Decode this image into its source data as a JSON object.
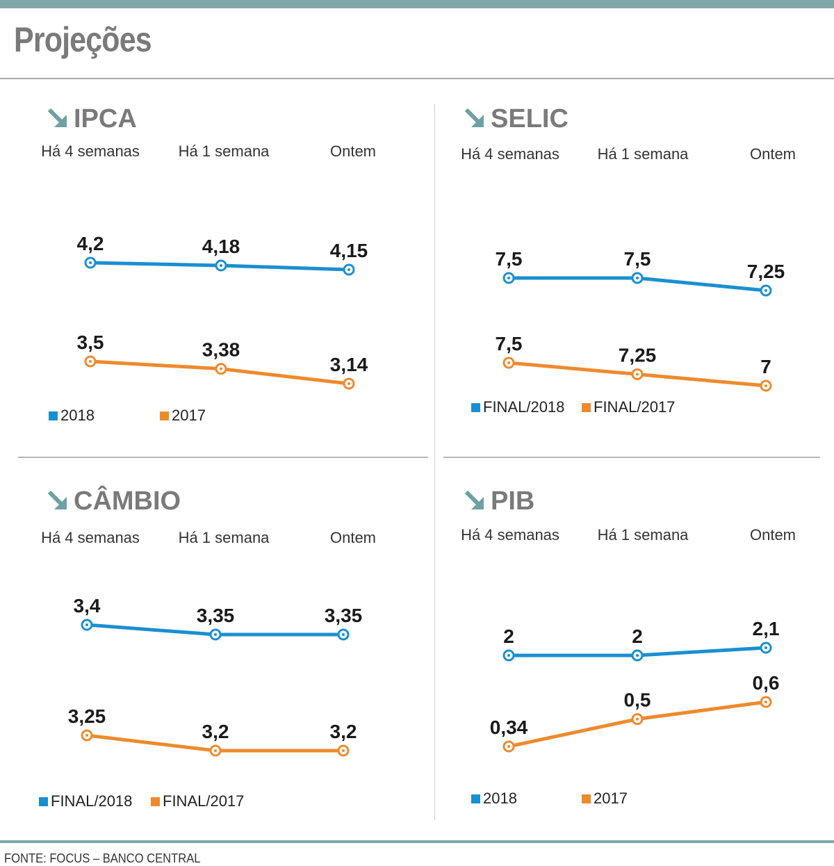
{
  "title": "Projeções",
  "source": "FONTE: FOCUS – BANCO CENTRAL",
  "colors": {
    "series_a": "#1a8fd0",
    "series_b": "#ee8a2d",
    "icon": "#6fa0a3",
    "accent_bar": "#7ea6a8"
  },
  "chart_data": [
    {
      "type": "line",
      "title": "IPCA",
      "categories": [
        "Há 4 semanas",
        "Há 1 semana",
        "Ontem"
      ],
      "series": [
        {
          "name": "2018",
          "values": [
            4.2,
            4.18,
            4.15
          ],
          "labels": [
            "4,2",
            "4,18",
            "4,15"
          ]
        },
        {
          "name": "2017",
          "values": [
            3.5,
            3.38,
            3.14
          ],
          "labels": [
            "3,5",
            "3,38",
            "3,14"
          ]
        }
      ],
      "legend": [
        "2018",
        "2017"
      ]
    },
    {
      "type": "line",
      "title": "SELIC",
      "categories": [
        "Há 4 semanas",
        "Há 1 semana",
        "Ontem"
      ],
      "series": [
        {
          "name": "FINAL/2018",
          "values": [
            7.5,
            7.5,
            7.25
          ],
          "labels": [
            "7,5",
            "7,5",
            "7,25"
          ]
        },
        {
          "name": "FINAL/2017",
          "values": [
            7.5,
            7.25,
            7
          ],
          "labels": [
            "7,5",
            "7,25",
            "7"
          ]
        }
      ],
      "legend": [
        "FINAL/2018",
        "FINAL/2017"
      ]
    },
    {
      "type": "line",
      "title": "CÂMBIO",
      "categories": [
        "Há 4 semanas",
        "Há 1 semana",
        "Ontem"
      ],
      "series": [
        {
          "name": "FINAL/2018",
          "values": [
            3.4,
            3.35,
            3.35
          ],
          "labels": [
            "3,4",
            "3,35",
            "3,35"
          ]
        },
        {
          "name": "FINAL/2017",
          "values": [
            3.25,
            3.2,
            3.2
          ],
          "labels": [
            "3,25",
            "3,2",
            "3,2"
          ]
        }
      ],
      "legend": [
        "FINAL/2018",
        "FINAL/2017"
      ]
    },
    {
      "type": "line",
      "title": "PIB",
      "categories": [
        "Há 4 semanas",
        "Há 1 semana",
        "Ontem"
      ],
      "series": [
        {
          "name": "2018",
          "values": [
            2,
            2,
            2.1
          ],
          "labels": [
            "2",
            "2",
            "2,1"
          ]
        },
        {
          "name": "2017",
          "values": [
            0.34,
            0.5,
            0.6
          ],
          "labels": [
            "0,34",
            "0,5",
            "0,6"
          ]
        }
      ],
      "legend": [
        "2018",
        "2017"
      ]
    }
  ]
}
